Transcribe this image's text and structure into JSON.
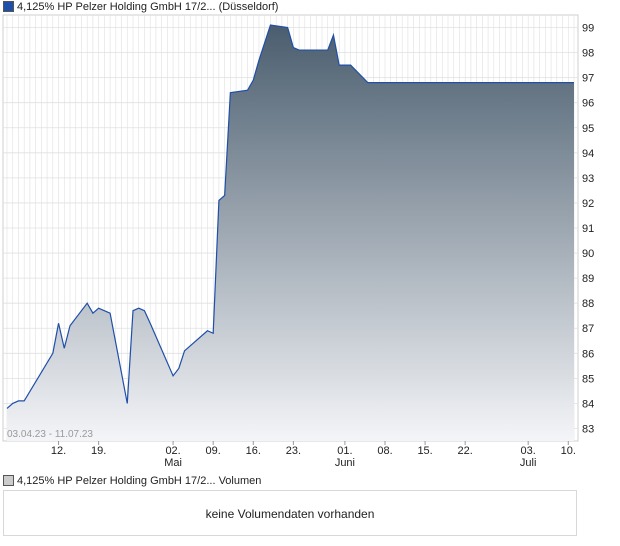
{
  "header": {
    "price_legend": "4,125% HP Pelzer Holding GmbH 17/2... (Düsseldorf)",
    "volume_legend": "4,125% HP Pelzer Holding GmbH 17/2... Volumen"
  },
  "volume": {
    "empty_message": "keine Volumendaten vorhanden"
  },
  "colors": {
    "line": "#1f4fa8",
    "fill_top": "#4a5d6e",
    "fill_bottom": "#f4f5f8",
    "grid": "#e0e0e0"
  },
  "chart_data": {
    "type": "area",
    "date_range_label": "03.04.23 - 11.07.23",
    "ylim": [
      82.5,
      99.5
    ],
    "y_ticks": [
      83,
      84,
      85,
      86,
      87,
      88,
      89,
      90,
      91,
      92,
      93,
      94,
      95,
      96,
      97,
      98,
      99
    ],
    "x_ticks": [
      {
        "day": "12.",
        "month": "",
        "date": "2023-04-12"
      },
      {
        "day": "19.",
        "month": "",
        "date": "2023-04-19"
      },
      {
        "day": "02.",
        "month": "Mai",
        "date": "2023-05-02"
      },
      {
        "day": "09.",
        "month": "",
        "date": "2023-05-09"
      },
      {
        "day": "16.",
        "month": "",
        "date": "2023-05-16"
      },
      {
        "day": "23.",
        "month": "",
        "date": "2023-05-23"
      },
      {
        "day": "01.",
        "month": "Juni",
        "date": "2023-06-01"
      },
      {
        "day": "08.",
        "month": "",
        "date": "2023-06-08"
      },
      {
        "day": "15.",
        "month": "",
        "date": "2023-06-15"
      },
      {
        "day": "22.",
        "month": "",
        "date": "2023-06-22"
      },
      {
        "day": "03.",
        "month": "Juli",
        "date": "2023-07-03"
      },
      {
        "day": "10.",
        "month": "",
        "date": "2023-07-10"
      }
    ],
    "series": [
      {
        "points": [
          [
            "2023-04-03",
            83.8
          ],
          [
            "2023-04-04",
            84.0
          ],
          [
            "2023-04-05",
            84.1
          ],
          [
            "2023-04-06",
            84.1
          ],
          [
            "2023-04-11",
            86.0
          ],
          [
            "2023-04-12",
            87.2
          ],
          [
            "2023-04-13",
            86.2
          ],
          [
            "2023-04-14",
            87.1
          ],
          [
            "2023-04-17",
            88.0
          ],
          [
            "2023-04-18",
            87.6
          ],
          [
            "2023-04-19",
            87.8
          ],
          [
            "2023-04-20",
            87.7
          ],
          [
            "2023-04-21",
            87.6
          ],
          [
            "2023-04-24",
            84.0
          ],
          [
            "2023-04-25",
            87.7
          ],
          [
            "2023-04-26",
            87.8
          ],
          [
            "2023-04-27",
            87.7
          ],
          [
            "2023-04-28",
            87.2
          ],
          [
            "2023-05-02",
            85.1
          ],
          [
            "2023-05-03",
            85.4
          ],
          [
            "2023-05-04",
            86.1
          ],
          [
            "2023-05-05",
            86.3
          ],
          [
            "2023-05-08",
            86.9
          ],
          [
            "2023-05-09",
            86.8
          ],
          [
            "2023-05-10",
            92.1
          ],
          [
            "2023-05-11",
            92.3
          ],
          [
            "2023-05-12",
            96.4
          ],
          [
            "2023-05-15",
            96.5
          ],
          [
            "2023-05-16",
            96.9
          ],
          [
            "2023-05-17",
            97.7
          ],
          [
            "2023-05-18",
            98.4
          ],
          [
            "2023-05-19",
            99.1
          ],
          [
            "2023-05-22",
            99.0
          ],
          [
            "2023-05-23",
            98.2
          ],
          [
            "2023-05-24",
            98.1
          ],
          [
            "2023-05-25",
            98.1
          ],
          [
            "2023-05-26",
            98.1
          ],
          [
            "2023-05-29",
            98.1
          ],
          [
            "2023-05-30",
            98.7
          ],
          [
            "2023-05-31",
            97.5
          ],
          [
            "2023-06-01",
            97.5
          ],
          [
            "2023-06-02",
            97.5
          ],
          [
            "2023-06-05",
            96.8
          ],
          [
            "2023-06-06",
            96.8
          ],
          [
            "2023-06-07",
            96.8
          ],
          [
            "2023-06-08",
            96.8
          ],
          [
            "2023-06-09",
            96.8
          ],
          [
            "2023-06-12",
            96.8
          ],
          [
            "2023-06-13",
            96.8
          ],
          [
            "2023-06-14",
            96.8
          ],
          [
            "2023-06-15",
            96.8
          ],
          [
            "2023-06-16",
            96.8
          ],
          [
            "2023-06-19",
            96.8
          ],
          [
            "2023-06-20",
            96.8
          ],
          [
            "2023-06-21",
            96.8
          ],
          [
            "2023-06-22",
            96.8
          ],
          [
            "2023-06-23",
            96.8
          ],
          [
            "2023-06-26",
            96.8
          ],
          [
            "2023-06-27",
            96.8
          ],
          [
            "2023-06-28",
            96.8
          ],
          [
            "2023-06-29",
            96.8
          ],
          [
            "2023-06-30",
            96.8
          ],
          [
            "2023-07-03",
            96.8
          ],
          [
            "2023-07-04",
            96.8
          ],
          [
            "2023-07-05",
            96.8
          ],
          [
            "2023-07-06",
            96.8
          ],
          [
            "2023-07-07",
            96.8
          ],
          [
            "2023-07-10",
            96.8
          ],
          [
            "2023-07-11",
            96.8
          ]
        ]
      }
    ]
  }
}
